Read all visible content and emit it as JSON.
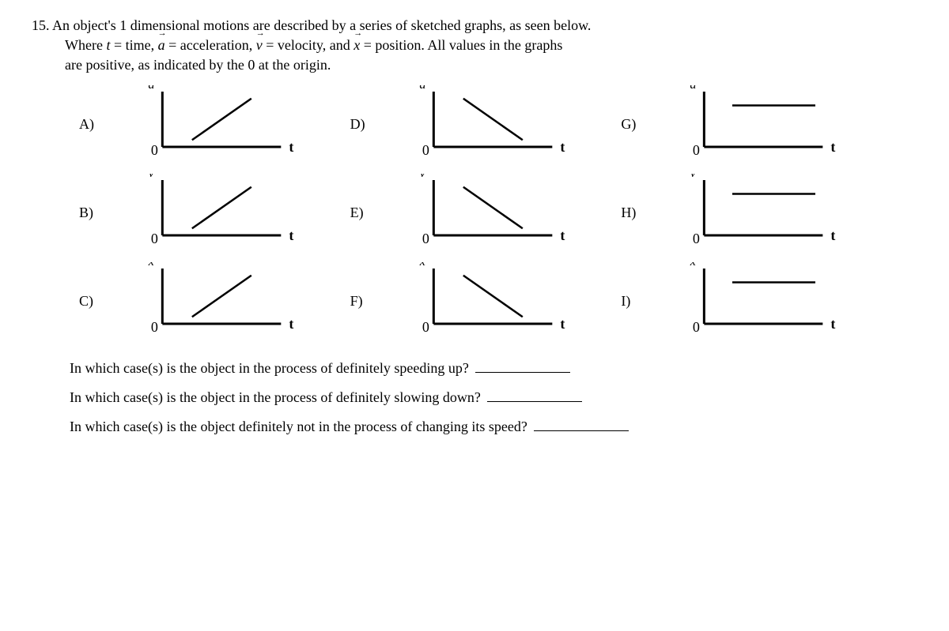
{
  "problem": {
    "number": "15.",
    "line1_part1": "An object's 1 dimensional motions are described by a series of sketched graphs, as seen below.",
    "line2_prefix": "Where ",
    "t_var": "t",
    "eq_time": " = time, ",
    "a_var": "a",
    "eq_accel": " = acceleration, ",
    "v_var": "v",
    "eq_vel": " = velocity, and ",
    "x_var": "x",
    "eq_pos": " = position. All values in the graphs",
    "line3": "are positive, as indicated by the 0 at the origin."
  },
  "graphs": [
    {
      "label": "A)",
      "yaxis": "a",
      "curve": "inc"
    },
    {
      "label": "D)",
      "yaxis": "a",
      "curve": "dec"
    },
    {
      "label": "G)",
      "yaxis": "a",
      "curve": "flat"
    },
    {
      "label": "B)",
      "yaxis": "v",
      "curve": "inc"
    },
    {
      "label": "E)",
      "yaxis": "v",
      "curve": "dec"
    },
    {
      "label": "H)",
      "yaxis": "v",
      "curve": "flat"
    },
    {
      "label": "C)",
      "yaxis": "x",
      "curve": "inc"
    },
    {
      "label": "F)",
      "yaxis": "x",
      "curve": "dec"
    },
    {
      "label": "I)",
      "yaxis": "x",
      "curve": "flat"
    }
  ],
  "axis": {
    "origin_label": "0",
    "x_label": "t",
    "xlim": [
      0,
      160
    ],
    "ylim": [
      0,
      80
    ],
    "axis_color": "#000000",
    "axis_width": 3,
    "curve_color": "#000000",
    "curve_width": 2.5,
    "label_fontsize": 18,
    "axis_label_fontsize": 16,
    "inc": {
      "x1": 40,
      "y1": 70,
      "x2": 120,
      "y2": 10
    },
    "dec": {
      "x1": 40,
      "y1": 10,
      "x2": 120,
      "y2": 70
    },
    "flat": {
      "x1": 38,
      "y1": 20,
      "x2": 150,
      "y2": 20
    }
  },
  "questions": {
    "q1": "In which case(s) is the object in the process of definitely speeding up?",
    "q2": "In which case(s) is the object in the process of definitely slowing down?",
    "q3": "In which case(s) is the object definitely not in the process of changing its speed?"
  }
}
